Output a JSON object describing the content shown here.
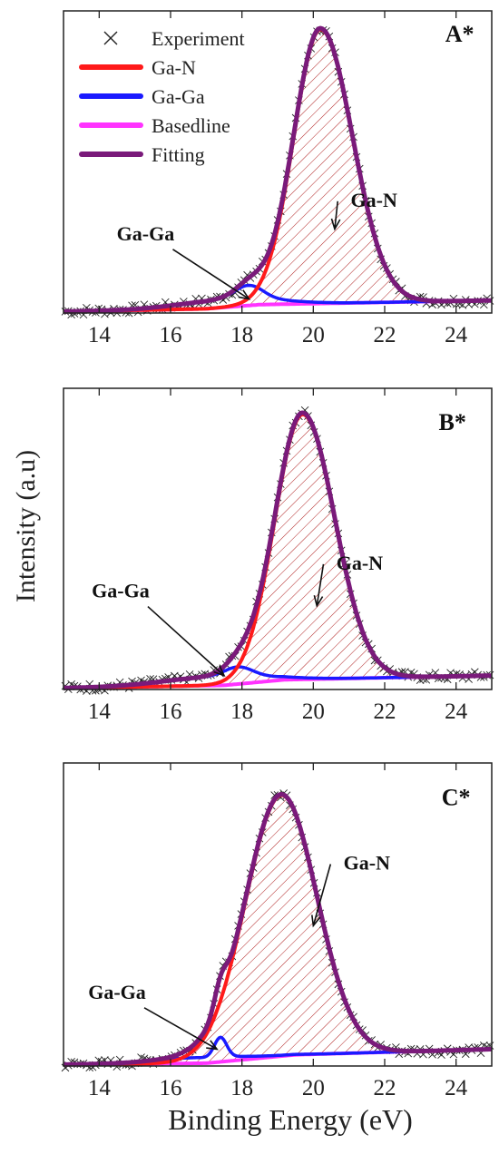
{
  "figure": {
    "ylabel": "Intensity (a.u)",
    "xlabel": "Binding Energy (eV)"
  },
  "legend": {
    "items": [
      {
        "label": "Experiment",
        "marker": "x",
        "color": "#222222"
      },
      {
        "label": "Ga-N",
        "marker": "line",
        "color": "#ff1a1a"
      },
      {
        "label": "Ga-Ga",
        "marker": "line",
        "color": "#1a1aff"
      },
      {
        "label": "Basedline",
        "marker": "line",
        "color": "#ff33ff"
      },
      {
        "label": "Fitting",
        "marker": "line",
        "color": "#7a1a7a"
      }
    ]
  },
  "chart_data": [
    {
      "type": "line",
      "panel_label": "A*",
      "xlim": [
        13,
        25
      ],
      "xticks": [
        14,
        16,
        18,
        20,
        22,
        24
      ],
      "ylim": [
        0,
        1.08
      ],
      "yticks_shown": false,
      "peaks": {
        "gan": {
          "center": 20.2,
          "amplitude": 0.98,
          "width_left": 0.75,
          "width_right": 0.9
        },
        "gaga": {
          "center": 18.2,
          "amplitude": 0.045,
          "width": 0.38
        },
        "broad": {
          "center": 17.6,
          "amplitude": 0.03,
          "width": 1.3
        }
      },
      "baseline": [
        [
          13,
          0.005
        ],
        [
          17,
          0.015
        ],
        [
          18.5,
          0.03
        ],
        [
          25,
          0.045
        ]
      ],
      "annotations": [
        {
          "text": "Ga-N",
          "target_x": 20.6,
          "target_y": 0.3
        },
        {
          "text": "Ga-Ga",
          "target_x": 18.2,
          "target_y": 0.05
        }
      ],
      "series": [
        {
          "name": "Experiment",
          "color": "#222222"
        },
        {
          "name": "Ga-N",
          "color": "#ff1a1a"
        },
        {
          "name": "Ga-Ga",
          "color": "#1a1aff"
        },
        {
          "name": "Basedline",
          "color": "#ff33ff"
        },
        {
          "name": "Fitting",
          "color": "#7a1a7a"
        }
      ]
    },
    {
      "type": "line",
      "panel_label": "B*",
      "xlim": [
        13,
        25
      ],
      "xticks": [
        14,
        16,
        18,
        20,
        22,
        24
      ],
      "ylim": [
        0,
        1.08
      ],
      "yticks_shown": false,
      "peaks": {
        "gan": {
          "center": 19.7,
          "amplitude": 0.95,
          "width_left": 0.78,
          "width_right": 0.9
        },
        "gaga": {
          "center": 17.9,
          "amplitude": 0.035,
          "width": 0.4
        },
        "broad": {
          "center": 17.2,
          "amplitude": 0.03,
          "width": 1.4
        }
      },
      "baseline": [
        [
          13,
          0.005
        ],
        [
          17.5,
          0.015
        ],
        [
          19.2,
          0.035
        ],
        [
          25,
          0.05
        ]
      ],
      "annotations": [
        {
          "text": "Ga-N",
          "target_x": 20.1,
          "target_y": 0.3
        },
        {
          "text": "Ga-Ga",
          "target_x": 17.5,
          "target_y": 0.05
        }
      ],
      "series": [
        {
          "name": "Experiment",
          "color": "#222222"
        },
        {
          "name": "Ga-N",
          "color": "#ff1a1a"
        },
        {
          "name": "Ga-Ga",
          "color": "#1a1aff"
        },
        {
          "name": "Basedline",
          "color": "#ff33ff"
        },
        {
          "name": "Fitting",
          "color": "#7a1a7a"
        }
      ]
    },
    {
      "type": "line",
      "panel_label": "C*",
      "xlim": [
        13,
        25
      ],
      "xticks": [
        14,
        16,
        18,
        20,
        22,
        24
      ],
      "ylim": [
        0,
        1.08
      ],
      "yticks_shown": false,
      "peaks": {
        "gan": {
          "center": 19.1,
          "amplitude": 0.93,
          "width_left": 1.0,
          "width_right": 1.0
        },
        "gaga": {
          "center": 17.4,
          "amplitude": 0.07,
          "width": 0.17
        },
        "broad": {
          "center": 16.8,
          "amplitude": 0.02,
          "width": 1.2
        }
      },
      "baseline": [
        [
          13,
          0.005
        ],
        [
          17,
          0.01
        ],
        [
          19.5,
          0.04
        ],
        [
          25,
          0.06
        ]
      ],
      "annotations": [
        {
          "text": "Ga-N",
          "target_x": 20,
          "target_y": 0.5
        },
        {
          "text": "Ga-Ga",
          "target_x": 17.3,
          "target_y": 0.06
        }
      ],
      "series": [
        {
          "name": "Experiment",
          "color": "#222222"
        },
        {
          "name": "Ga-N",
          "color": "#ff1a1a"
        },
        {
          "name": "Ga-Ga",
          "color": "#1a1aff"
        },
        {
          "name": "Basedline",
          "color": "#ff33ff"
        },
        {
          "name": "Fitting",
          "color": "#7a1a7a"
        }
      ]
    }
  ]
}
